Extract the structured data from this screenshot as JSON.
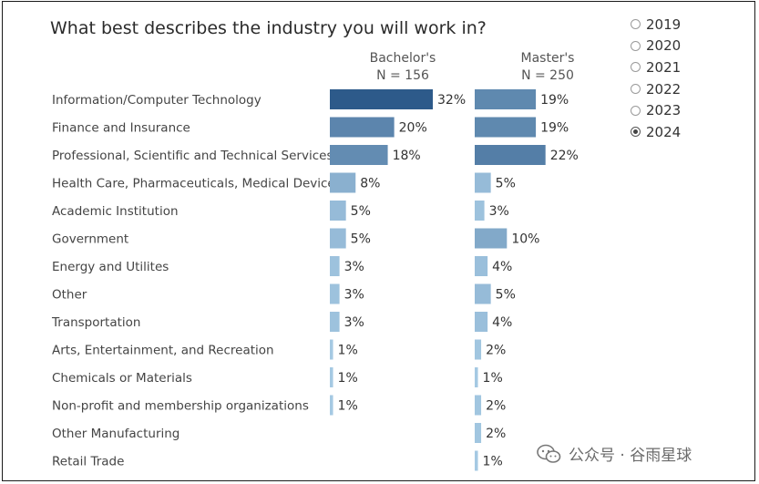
{
  "chart_data": {
    "type": "bar",
    "orientation": "horizontal",
    "title": "What best describes the industry you will work in?",
    "categories": [
      "Information/Computer Technology",
      "Finance and Insurance",
      "Professional, Scientific and Technical Services (in..",
      "Health Care, Pharmaceuticals, Medical Devices",
      "Academic Institution",
      "Government",
      "Energy and Utilites",
      "Other",
      "Transportation",
      "Arts, Entertainment, and Recreation",
      "Chemicals or Materials",
      "Non-profit and membership organizations",
      "Other Manufacturing",
      "Retail Trade"
    ],
    "series": [
      {
        "name": "Bachelor's",
        "n_label": "N = 156",
        "values": [
          32,
          20,
          18,
          8,
          5,
          5,
          3,
          3,
          3,
          1,
          1,
          1,
          null,
          null
        ]
      },
      {
        "name": "Master's",
        "n_label": "N = 250",
        "values": [
          19,
          19,
          22,
          5,
          3,
          10,
          4,
          5,
          4,
          2,
          1,
          2,
          2,
          1
        ]
      }
    ],
    "value_suffix": "%",
    "color_scale": {
      "low": "#a9cde6",
      "high": "#2d5a8a"
    },
    "legend": "none",
    "grid": false
  },
  "year_filter": {
    "options": [
      "2019",
      "2020",
      "2021",
      "2022",
      "2023",
      "2024"
    ],
    "selected": "2024"
  },
  "watermark": {
    "text": "公众号 · 谷雨星球",
    "icon": "wechat-icon"
  }
}
